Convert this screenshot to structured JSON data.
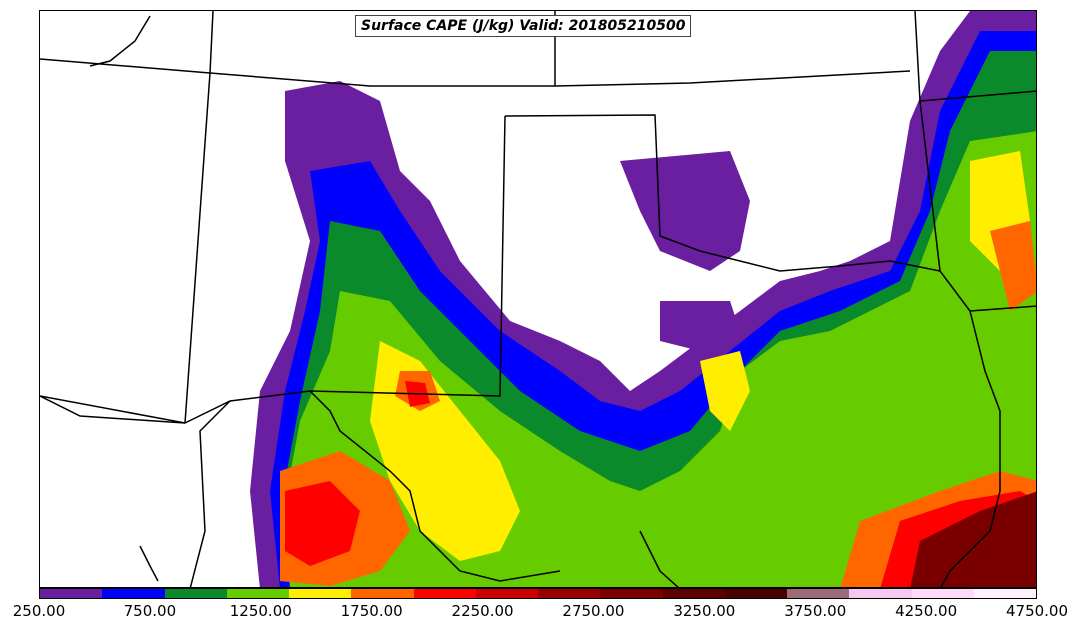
{
  "title": "Surface CAPE (J/kg) Valid: 201805210500",
  "colorbar": {
    "colors": [
      "#6a1fa0",
      "#0000ff",
      "#0a8a2a",
      "#66cc00",
      "#ffee00",
      "#ff6600",
      "#ff0000",
      "#cc0000",
      "#990000",
      "#7a0000",
      "#5a0000",
      "#4a0000",
      "#9c6b7a",
      "#f5c8f0",
      "#ffd9fa",
      "#fff0fb"
    ],
    "ticks": [
      "250.00",
      "750.00",
      "1250.00",
      "1750.00",
      "2250.00",
      "2750.00",
      "3250.00",
      "3750.00",
      "4250.00",
      "4750.00"
    ],
    "range": [
      250,
      4750
    ]
  }
}
